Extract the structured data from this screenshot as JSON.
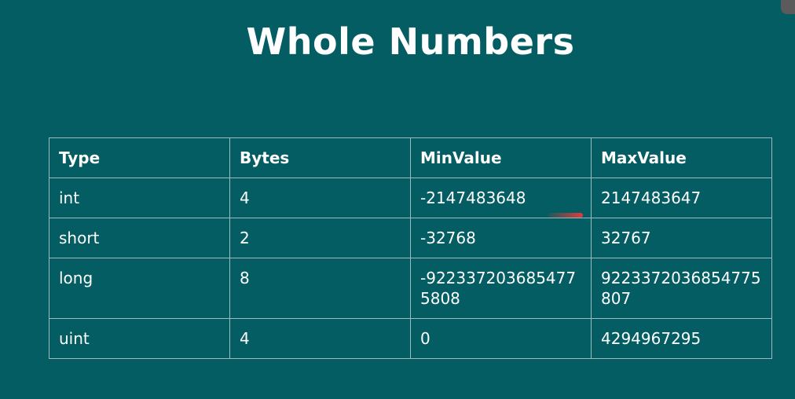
{
  "slide": {
    "title": "Whole Numbers"
  },
  "table": {
    "headers": [
      "Type",
      "Bytes",
      "MinValue",
      "MaxValue"
    ],
    "rows": [
      [
        "int",
        "4",
        "-2147483648",
        "2147483647"
      ],
      [
        "short",
        "2",
        "-32768",
        "32767"
      ],
      [
        "long",
        "8",
        "-9223372036854775808",
        "9223372036854775807"
      ],
      [
        "uint",
        "4",
        "0",
        "4294967295"
      ]
    ]
  },
  "colors": {
    "background": "#035d63",
    "text": "#ffffff",
    "grid_lines": "#9dbcbf",
    "annotation": "#e23b3b"
  }
}
